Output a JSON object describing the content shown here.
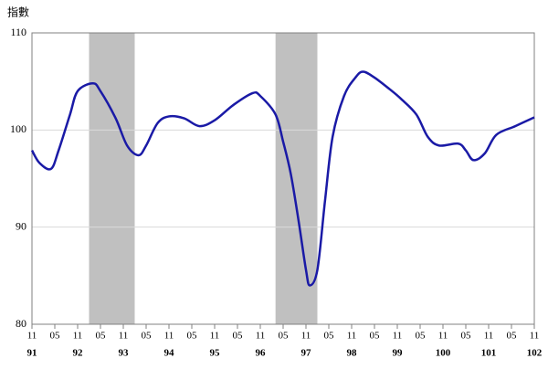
{
  "chart_data": {
    "type": "line",
    "y_label": "指數",
    "x": [
      "91-11",
      "92-01",
      "92-04",
      "92-06",
      "92-09",
      "92-11",
      "93-03",
      "93-05",
      "93-09",
      "93-12",
      "94-03",
      "94-05",
      "94-08",
      "94-11",
      "95-03",
      "95-07",
      "95-11",
      "96-04",
      "96-09",
      "96-11",
      "97-03",
      "97-05",
      "97-07",
      "97-09",
      "97-11",
      "97-12",
      "98-02",
      "98-04",
      "98-06",
      "98-09",
      "98-12",
      "99-02",
      "99-05",
      "99-09",
      "99-12",
      "100-04",
      "100-07",
      "100-10",
      "101-03",
      "101-05",
      "101-07",
      "101-10",
      "102-01",
      "102-06",
      "102-11"
    ],
    "series": [
      {
        "color": "#1a1aa6",
        "values": [
          97.9,
          96.6,
          96.0,
          97.9,
          101.6,
          104.0,
          104.8,
          104.0,
          101.2,
          98.4,
          97.4,
          98.4,
          100.7,
          101.4,
          101.2,
          100.4,
          101.0,
          102.6,
          103.8,
          103.5,
          101.6,
          98.8,
          95.5,
          90.8,
          85.6,
          84.0,
          85.6,
          92.7,
          99.3,
          103.5,
          105.4,
          106.0,
          105.4,
          104.2,
          103.2,
          101.6,
          99.3,
          98.4,
          98.6,
          97.9,
          96.9,
          97.6,
          99.5,
          100.4,
          101.3
        ]
      }
    ],
    "xlim": [
      "91-11",
      "102-11"
    ],
    "xticks": [
      {
        "value": "91-11",
        "label": "11"
      },
      {
        "value": "92-05",
        "label": "05"
      },
      {
        "value": "92-11",
        "label": "11"
      },
      {
        "value": "93-05",
        "label": "05"
      },
      {
        "value": "93-11",
        "label": "11"
      },
      {
        "value": "94-05",
        "label": "05"
      },
      {
        "value": "94-11",
        "label": "11"
      },
      {
        "value": "95-05",
        "label": "05"
      },
      {
        "value": "95-11",
        "label": "11"
      },
      {
        "value": "96-05",
        "label": "05"
      },
      {
        "value": "96-11",
        "label": "11"
      },
      {
        "value": "97-05",
        "label": "05"
      },
      {
        "value": "97-11",
        "label": "11"
      },
      {
        "value": "98-05",
        "label": "05"
      },
      {
        "value": "98-11",
        "label": "11"
      },
      {
        "value": "99-05",
        "label": "05"
      },
      {
        "value": "99-11",
        "label": "11"
      },
      {
        "value": "100-05",
        "label": "05"
      },
      {
        "value": "100-11",
        "label": "11"
      },
      {
        "value": "101-05",
        "label": "05"
      },
      {
        "value": "101-11",
        "label": "11"
      },
      {
        "value": "102-05",
        "label": "05"
      },
      {
        "value": "102-11",
        "label": "11"
      }
    ],
    "year_labels": [
      {
        "value": "91-11",
        "label": "91"
      },
      {
        "value": "92-11",
        "label": "92"
      },
      {
        "value": "93-11",
        "label": "93"
      },
      {
        "value": "94-11",
        "label": "94"
      },
      {
        "value": "95-11",
        "label": "95"
      },
      {
        "value": "96-11",
        "label": "96"
      },
      {
        "value": "97-11",
        "label": "97"
      },
      {
        "value": "98-11",
        "label": "98"
      },
      {
        "value": "99-11",
        "label": "99"
      },
      {
        "value": "100-11",
        "label": "100"
      },
      {
        "value": "101-11",
        "label": "101"
      },
      {
        "value": "102-11",
        "label": "102"
      }
    ],
    "ylim": [
      80,
      110
    ],
    "yticks": [
      80,
      90,
      100,
      110
    ],
    "grid": true,
    "shaded_periods": [
      {
        "start": "93-02",
        "end": "94-02",
        "color": "#c0c0c0"
      },
      {
        "start": "97-03",
        "end": "98-02",
        "color": "#c0c0c0"
      }
    ]
  }
}
